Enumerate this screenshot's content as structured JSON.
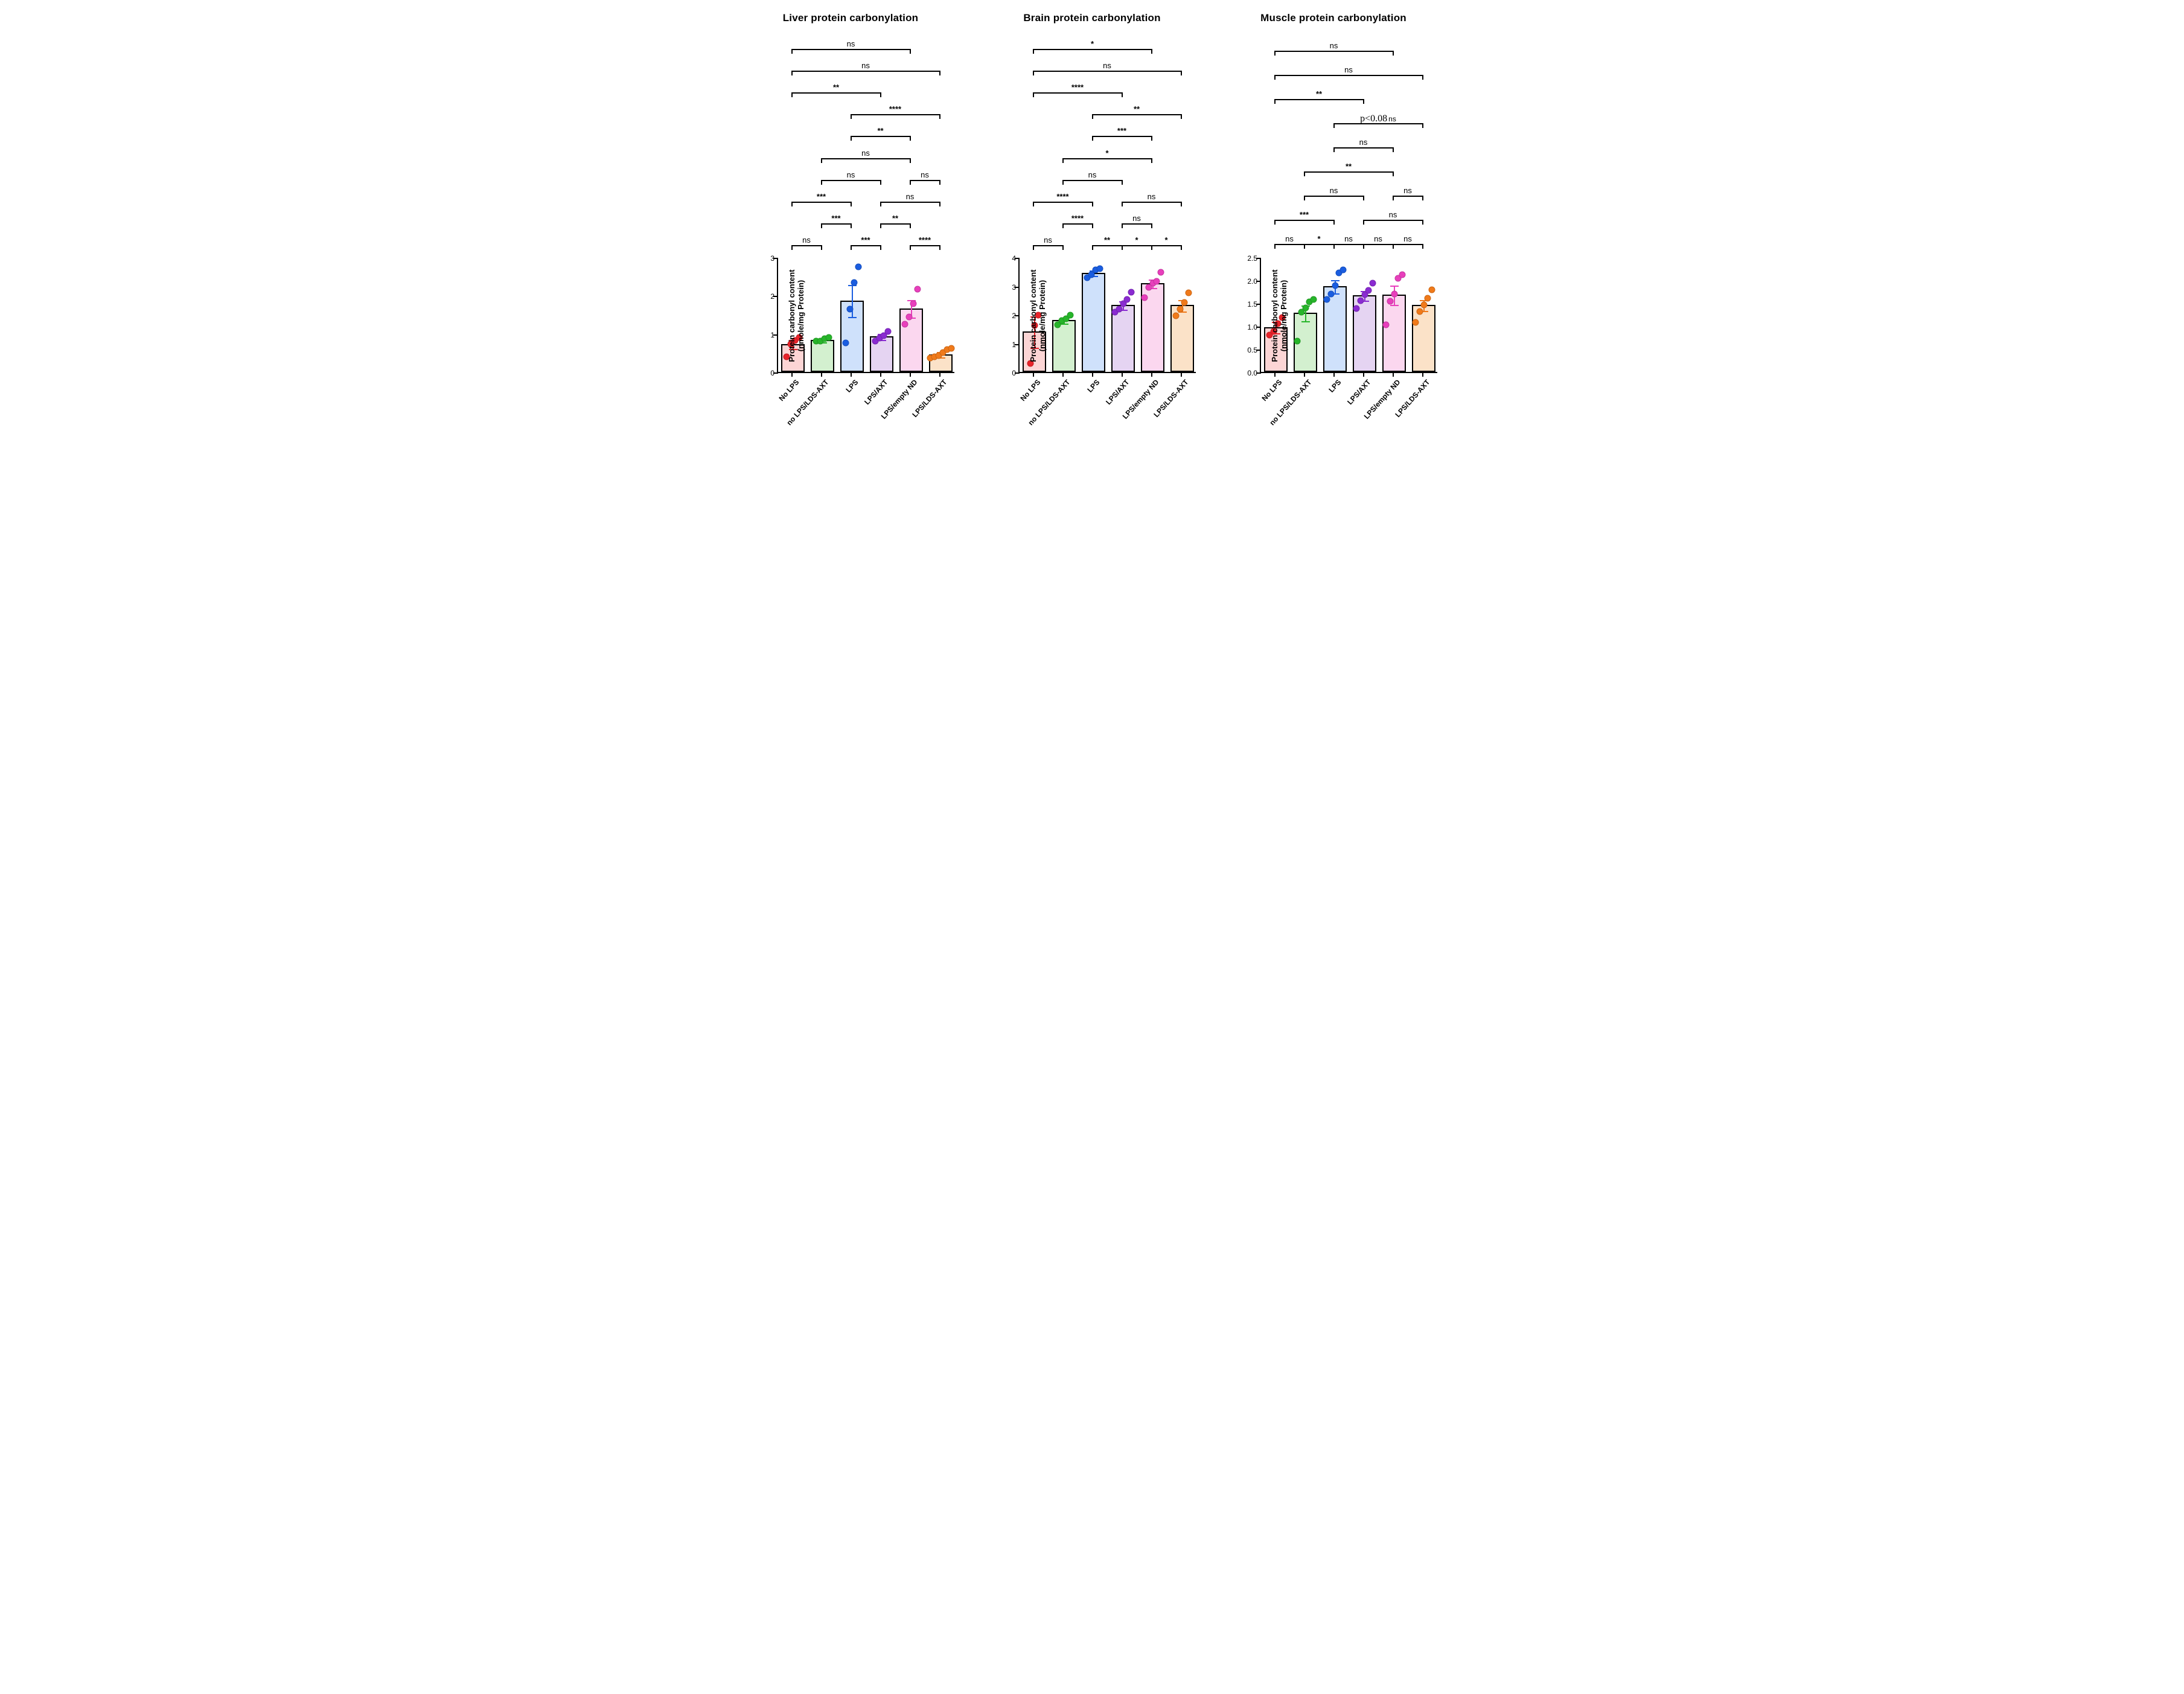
{
  "global": {
    "ylabel": "Protein carbonyl content\n(nmole/mg Protein)",
    "categories": [
      "No LPS",
      "no LPS/LDS-AXT",
      "LPS",
      "LPS/AXT",
      "LPS/empty ND",
      "LPS/LDS-AXT"
    ],
    "bar_fill": [
      "#fcd5d5",
      "#d3f0cf",
      "#cfe1fb",
      "#e5d4f2",
      "#fbd7ef",
      "#fbe2c8"
    ],
    "bar_border": "#000000",
    "dot_fill": [
      "#e8232a",
      "#27b52a",
      "#1a5de0",
      "#8a2bd1",
      "#e83fbc",
      "#f07a1a"
    ],
    "err_color": [
      "#e8232a",
      "#27b52a",
      "#1a5de0",
      "#8a2bd1",
      "#e83fbc",
      "#f07a1a"
    ],
    "background_color": "#ffffff",
    "title_fontsize": 17,
    "label_fontsize": 13,
    "tick_fontsize": 12
  },
  "panels": [
    {
      "title": "Liver protein carbonylation",
      "ylim": [
        0,
        3
      ],
      "ytick_step": 1,
      "ytick_decimals": 0,
      "means": [
        0.73,
        0.84,
        1.87,
        0.93,
        1.66,
        0.46
      ],
      "err": [
        0.12,
        0.05,
        0.42,
        0.08,
        0.23,
        0.07
      ],
      "points": [
        [
          0.4,
          0.73,
          0.82,
          0.9
        ],
        [
          0.81,
          0.8,
          0.87,
          0.9
        ],
        [
          0.76,
          1.65,
          2.33,
          2.74
        ],
        [
          0.8,
          0.89,
          0.95,
          1.06
        ],
        [
          1.24,
          1.44,
          1.78,
          2.17
        ],
        [
          0.36,
          0.4,
          0.42,
          0.5,
          0.58,
          0.62
        ]
      ],
      "brackets": [
        {
          "row": 0,
          "from": 0,
          "to": 1,
          "label": "ns"
        },
        {
          "row": 0,
          "from": 2,
          "to": 3,
          "label": "***"
        },
        {
          "row": 0,
          "from": 4,
          "to": 5,
          "label": "****"
        },
        {
          "row": 1,
          "from": 1,
          "to": 2,
          "label": "***"
        },
        {
          "row": 1,
          "from": 3,
          "to": 4,
          "label": "**"
        },
        {
          "row": 2,
          "from": 0,
          "to": 2,
          "label": "***"
        },
        {
          "row": 2,
          "from": 3,
          "to": 5,
          "label": "ns"
        },
        {
          "row": 3,
          "from": 1,
          "to": 3,
          "label": "ns"
        },
        {
          "row": 3,
          "from": 4,
          "to": 5,
          "label": "ns",
          "short": true
        },
        {
          "row": 4,
          "from": 1,
          "to": 4,
          "label": "ns"
        },
        {
          "row": 5,
          "from": 2,
          "to": 4,
          "label": "**"
        },
        {
          "row": 6,
          "from": 2,
          "to": 5,
          "label": "****"
        },
        {
          "row": 7,
          "from": 0,
          "to": 3,
          "label": "**"
        },
        {
          "row": 8,
          "from": 0,
          "to": 5,
          "label": "ns"
        },
        {
          "row": 9,
          "from": 0,
          "to": 4,
          "label": "ns"
        }
      ]
    },
    {
      "title": "Brain protein carbonylation",
      "ylim": [
        0,
        4
      ],
      "ytick_step": 1,
      "ytick_decimals": 0,
      "means": [
        1.41,
        1.81,
        3.46,
        2.33,
        3.1,
        2.33
      ],
      "err": [
        0.55,
        0.1,
        0.1,
        0.15,
        0.15,
        0.2
      ],
      "points": [
        [
          0.29,
          1.62,
          1.98
        ],
        [
          1.64,
          1.78,
          1.85,
          1.98
        ],
        [
          3.28,
          3.4,
          3.55,
          3.6
        ],
        [
          2.08,
          2.18,
          2.38,
          2.52,
          2.78
        ],
        [
          2.6,
          2.95,
          3.1,
          3.15,
          3.48
        ],
        [
          1.96,
          2.18,
          2.42,
          2.75
        ]
      ],
      "brackets": [
        {
          "row": 0,
          "from": 0,
          "to": 1,
          "label": "ns"
        },
        {
          "row": 0,
          "from": 2,
          "to": 3,
          "label": "**"
        },
        {
          "row": 0,
          "short": true,
          "from": 3,
          "to": 4,
          "label": "*",
          "shift": 1
        },
        {
          "row": 0,
          "from": 4,
          "to": 5,
          "label": "*",
          "shift": 2
        },
        {
          "row": 1,
          "from": 1,
          "to": 2,
          "label": "****"
        },
        {
          "row": 1,
          "from": 3,
          "to": 4,
          "label": "ns",
          "shift": 1
        },
        {
          "row": 2,
          "from": 0,
          "to": 2,
          "label": "****"
        },
        {
          "row": 2,
          "from": 3,
          "to": 5,
          "label": "ns"
        },
        {
          "row": 3,
          "from": 1,
          "to": 3,
          "label": "ns"
        },
        {
          "row": 4,
          "from": 1,
          "to": 4,
          "label": "*"
        },
        {
          "row": 5,
          "from": 2,
          "to": 4,
          "label": "***"
        },
        {
          "row": 6,
          "from": 2,
          "to": 5,
          "label": "**"
        },
        {
          "row": 7,
          "from": 0,
          "to": 3,
          "label": "****"
        },
        {
          "row": 8,
          "from": 0,
          "to": 5,
          "label": "ns"
        },
        {
          "row": 9,
          "from": 0,
          "to": 4,
          "label": "*"
        }
      ]
    },
    {
      "title": "Muscle protein carbonylation",
      "ylim": [
        0,
        2.5
      ],
      "ytick_step": 0.5,
      "ytick_decimals": 1,
      "means": [
        0.98,
        1.29,
        1.87,
        1.67,
        1.68,
        1.46
      ],
      "err": [
        0.12,
        0.17,
        0.14,
        0.1,
        0.21,
        0.12
      ],
      "points": [
        [
          0.8,
          0.88,
          1.05,
          1.18
        ],
        [
          0.67,
          1.3,
          1.4,
          1.52,
          1.58
        ],
        [
          1.58,
          1.7,
          1.88,
          2.16,
          2.23
        ],
        [
          1.38,
          1.55,
          1.68,
          1.78,
          1.93
        ],
        [
          1.03,
          1.54,
          1.7,
          2.04,
          2.12
        ],
        [
          1.08,
          1.32,
          1.46,
          1.6,
          1.79
        ]
      ],
      "brackets": [
        {
          "row": 0,
          "from": 0,
          "to": 1,
          "label": "ns"
        },
        {
          "row": 0,
          "from": 1,
          "to": 2,
          "label": "*",
          "shift": 1
        },
        {
          "row": 0,
          "from": 2,
          "to": 3,
          "label": "ns",
          "shift": 2
        },
        {
          "row": 0,
          "from": 3,
          "to": 4,
          "label": "ns",
          "shift": 3
        },
        {
          "row": 0,
          "from": 4,
          "to": 5,
          "label": "ns",
          "shift": 4
        },
        {
          "row": 1,
          "from": 0,
          "to": 2,
          "label": "***"
        },
        {
          "row": 1,
          "from": 3,
          "to": 5,
          "label": "ns"
        },
        {
          "row": 2,
          "from": 1,
          "to": 3,
          "label": "ns"
        },
        {
          "row": 2,
          "from": 4,
          "to": 5,
          "label": "ns",
          "short": true
        },
        {
          "row": 3,
          "from": 1,
          "to": 4,
          "label": "**"
        },
        {
          "row": 4,
          "from": 2,
          "to": 4,
          "label": "ns"
        },
        {
          "row": 5,
          "from": 2,
          "to": 5,
          "label": "p<0.08 ns",
          "pval": true
        },
        {
          "row": 6,
          "from": 0,
          "to": 3,
          "label": "**"
        },
        {
          "row": 7,
          "from": 0,
          "to": 5,
          "label": "ns"
        },
        {
          "row": 8,
          "from": 0,
          "to": 4,
          "label": "ns"
        }
      ]
    }
  ]
}
